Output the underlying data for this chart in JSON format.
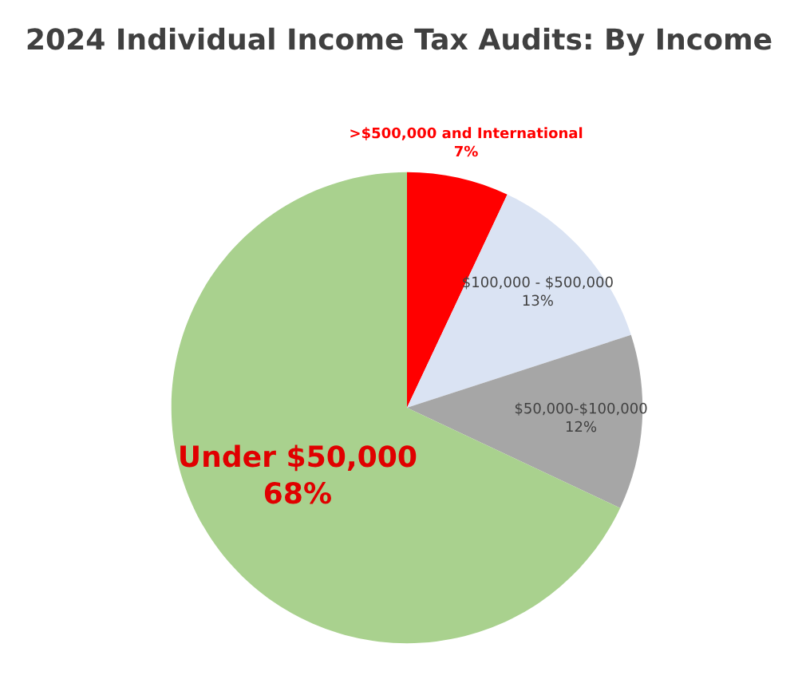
{
  "chart_data": {
    "type": "pie",
    "title": "2024 Individual Income Tax Audits: By Income",
    "categories": [
      ">$500,000 and International",
      "$100,000 - $500,000",
      "$50,000-$100,000",
      "Under $50,000"
    ],
    "values": [
      7,
      13,
      12,
      68
    ],
    "colors": [
      "#ff0000",
      "#dae3f3",
      "#a6a6a6",
      "#a9d18e"
    ],
    "value_labels": [
      "7%",
      "13%",
      "12%",
      "68%"
    ]
  }
}
